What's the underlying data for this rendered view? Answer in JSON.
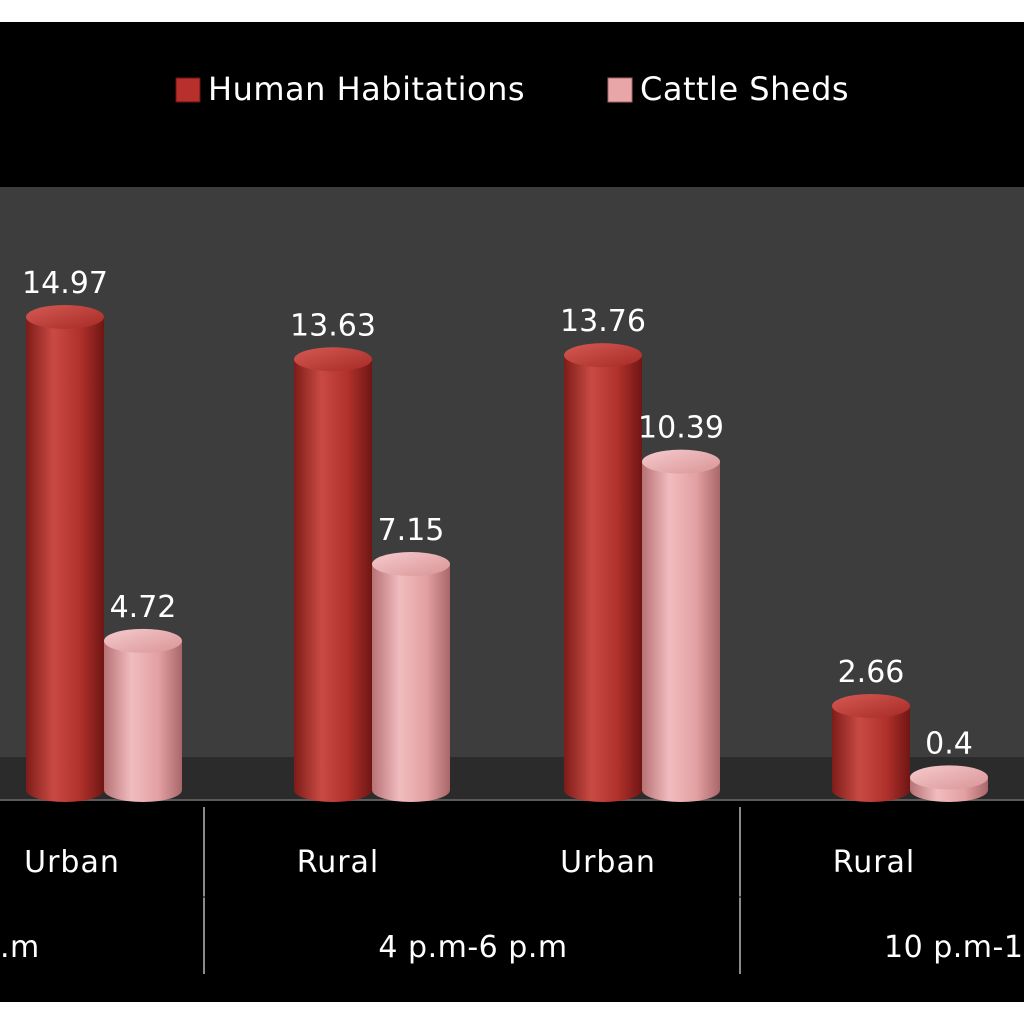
{
  "chart_data": {
    "type": "bar",
    "legend": [
      "Human Habitations",
      "Cattle Sheds"
    ],
    "groups": [
      {
        "label": ".m",
        "categories": [
          "Urban"
        ]
      },
      {
        "label": "4 p.m-6 p.m",
        "categories": [
          "Rural",
          "Urban"
        ]
      },
      {
        "label": "10 p.m-1",
        "categories": [
          "Rural"
        ]
      }
    ],
    "categories": [
      "Urban",
      "Rural",
      "Urban",
      "Rural"
    ],
    "series": [
      {
        "name": "Human Habitations",
        "values": [
          14.97,
          13.63,
          13.76,
          2.66
        ],
        "color": "#c0392f"
      },
      {
        "name": "Cattle Sheds",
        "values": [
          4.72,
          7.15,
          10.39,
          0.4
        ],
        "color": "#e8a6a8"
      }
    ],
    "value_labels": [
      [
        "14.97",
        "13.63",
        "13.76",
        "2.66"
      ],
      [
        "4.72",
        "7.15",
        "10.39",
        "0.4"
      ]
    ],
    "ylim": [
      0,
      17.5
    ],
    "legend_position": "top",
    "grid": false,
    "style": "3d-cylinder",
    "colors": {
      "background": "#000000",
      "plot_area": "#3d3d3d",
      "floor": "#2c2c2c",
      "divider": "#8a8a8a",
      "text": "#ffffff"
    }
  }
}
